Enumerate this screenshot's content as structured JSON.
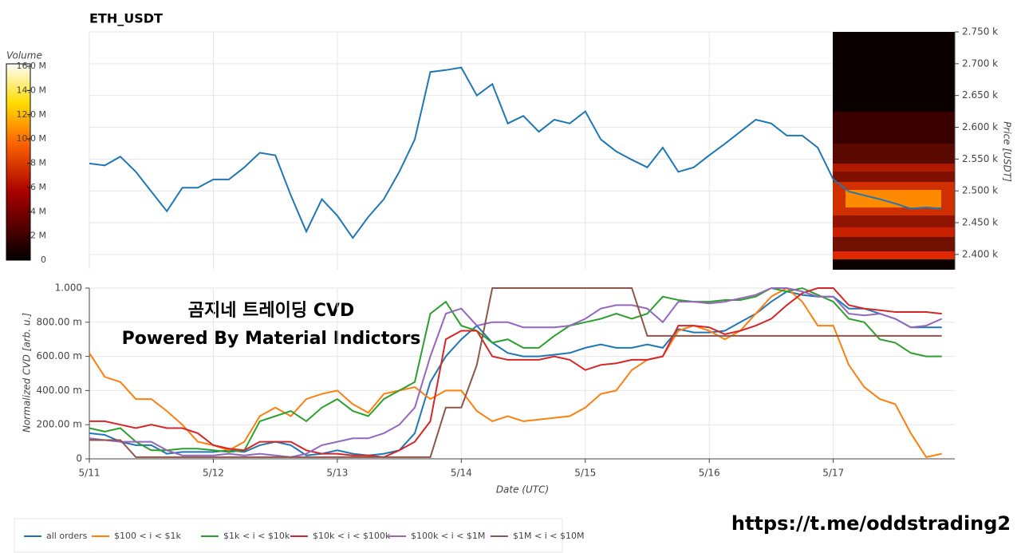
{
  "chart_data": [
    {
      "type": "line",
      "title": "ETH_USDT",
      "y_label": "Price [USDT]",
      "x": [
        11,
        11.125,
        11.25,
        11.375,
        11.5,
        11.625,
        11.75,
        11.875,
        12,
        12.125,
        12.25,
        12.375,
        12.5,
        12.625,
        12.75,
        12.875,
        13,
        13.125,
        13.25,
        13.375,
        13.5,
        13.625,
        13.75,
        13.875,
        14,
        14.125,
        14.25,
        14.375,
        14.5,
        14.625,
        14.75,
        14.875,
        15,
        15.125,
        15.25,
        15.375,
        15.5,
        15.625,
        15.75,
        15.875,
        16,
        16.125,
        16.25,
        16.375,
        16.5,
        16.625,
        16.75,
        16.875,
        17,
        17.125,
        17.25,
        17.375,
        17.5,
        17.625,
        17.75,
        17.875
      ],
      "series": [
        {
          "color": "#1f77b4",
          "values": [
            2543,
            2540,
            2554,
            2530,
            2499,
            2468,
            2505,
            2505,
            2518,
            2518,
            2537,
            2560,
            2556,
            2493,
            2436,
            2487,
            2461,
            2426,
            2459,
            2487,
            2530,
            2581,
            2687,
            2690,
            2694,
            2650,
            2668,
            2606,
            2618,
            2593,
            2612,
            2606,
            2625,
            2581,
            2562,
            2549,
            2537,
            2568,
            2530,
            2537,
            2556,
            2574,
            2593,
            2612,
            2606,
            2587,
            2587,
            2568,
            2518,
            2499,
            2493,
            2487,
            2480,
            2472,
            2474,
            2472
          ]
        }
      ],
      "xlim": [
        11,
        17.98
      ],
      "ylim": [
        2376,
        2750
      ],
      "yticks": [
        {
          "value": 2400,
          "label": "2.400 k"
        },
        {
          "value": 2450,
          "label": "2.450 k"
        },
        {
          "value": 2500,
          "label": "2.500 k"
        },
        {
          "value": 2550,
          "label": "2.550 k"
        },
        {
          "value": 2600,
          "label": "2.600 k"
        },
        {
          "value": 2650,
          "label": "2.650 k"
        },
        {
          "value": 2700,
          "label": "2.700 k"
        },
        {
          "value": 2750,
          "label": "2.750 k"
        }
      ],
      "colorbar": {
        "label": "Volume",
        "lim": [
          0,
          16000000
        ],
        "ticks": [
          0,
          {
            "value": 2000000,
            "label": "2 M"
          },
          {
            "value": 4000000,
            "label": "4 M"
          },
          {
            "value": 6000000,
            "label": "6 M"
          },
          {
            "value": 8000000,
            "label": "8 M"
          },
          {
            "value": 10000000,
            "label": "10.0 M"
          },
          {
            "value": 12000000,
            "label": "12.0 M"
          },
          {
            "value": 14000000,
            "label": "14.0 M"
          },
          {
            "value": 16000000,
            "label": "16.0 M"
          }
        ]
      },
      "grid": true
    },
    {
      "type": "line",
      "x_label": "Date (UTC)",
      "y_label": "Normalized CVD [arb. u.]",
      "annotations": [
        "곰지네 트레이딩 CVD",
        "Powered By Material Indictors"
      ],
      "x": [
        11,
        11.125,
        11.25,
        11.375,
        11.5,
        11.625,
        11.75,
        11.875,
        12,
        12.125,
        12.25,
        12.375,
        12.5,
        12.625,
        12.75,
        12.875,
        13,
        13.125,
        13.25,
        13.375,
        13.5,
        13.625,
        13.75,
        13.875,
        14,
        14.125,
        14.25,
        14.375,
        14.5,
        14.625,
        14.75,
        14.875,
        15,
        15.125,
        15.25,
        15.375,
        15.5,
        15.625,
        15.75,
        15.875,
        16,
        16.125,
        16.25,
        16.375,
        16.5,
        16.625,
        16.75,
        16.875,
        17,
        17.125,
        17.25,
        17.375,
        17.5,
        17.625,
        17.75,
        17.875
      ],
      "series": [
        {
          "name": "all orders",
          "color": "#1f77b4",
          "values": [
            0.15,
            0.14,
            0.1,
            0.08,
            0.08,
            0.03,
            0.04,
            0.04,
            0.04,
            0.05,
            0.04,
            0.08,
            0.1,
            0.08,
            0.02,
            0.03,
            0.05,
            0.03,
            0.02,
            0.03,
            0.05,
            0.15,
            0.45,
            0.6,
            0.7,
            0.78,
            0.68,
            0.62,
            0.6,
            0.6,
            0.61,
            0.62,
            0.65,
            0.67,
            0.65,
            0.65,
            0.67,
            0.65,
            0.76,
            0.74,
            0.74,
            0.75,
            0.8,
            0.85,
            0.92,
            0.98,
            0.96,
            0.95,
            0.95,
            0.88,
            0.88,
            0.85,
            0.82,
            0.77,
            0.77,
            0.77
          ]
        },
        {
          "name": "$100 < i < $1k",
          "color": "#ff7f0e",
          "values": [
            0.62,
            0.48,
            0.45,
            0.35,
            0.35,
            0.28,
            0.2,
            0.1,
            0.08,
            0.05,
            0.1,
            0.25,
            0.3,
            0.25,
            0.35,
            0.38,
            0.4,
            0.32,
            0.27,
            0.38,
            0.4,
            0.42,
            0.35,
            0.4,
            0.4,
            0.28,
            0.22,
            0.25,
            0.22,
            0.23,
            0.24,
            0.25,
            0.3,
            0.38,
            0.4,
            0.52,
            0.58,
            0.6,
            0.75,
            0.78,
            0.75,
            0.7,
            0.75,
            0.85,
            0.95,
            1.0,
            0.92,
            0.78,
            0.78,
            0.55,
            0.42,
            0.35,
            0.32,
            0.15,
            0.01,
            0.03
          ]
        },
        {
          "name": "$1k < i < $10k",
          "color": "#2ca02c",
          "values": [
            0.18,
            0.16,
            0.18,
            0.1,
            0.05,
            0.05,
            0.06,
            0.06,
            0.05,
            0.04,
            0.05,
            0.22,
            0.25,
            0.28,
            0.22,
            0.3,
            0.35,
            0.28,
            0.25,
            0.35,
            0.4,
            0.45,
            0.85,
            0.92,
            0.78,
            0.75,
            0.68,
            0.7,
            0.65,
            0.65,
            0.72,
            0.78,
            0.8,
            0.82,
            0.85,
            0.82,
            0.85,
            0.95,
            0.93,
            0.92,
            0.92,
            0.93,
            0.93,
            0.95,
            1.0,
            0.98,
            1.0,
            0.96,
            0.92,
            0.82,
            0.8,
            0.7,
            0.68,
            0.62,
            0.6,
            0.6
          ]
        },
        {
          "name": "$10k < i < $100k",
          "color": "#d62728",
          "values": [
            0.22,
            0.22,
            0.2,
            0.18,
            0.2,
            0.18,
            0.18,
            0.15,
            0.08,
            0.06,
            0.05,
            0.1,
            0.1,
            0.1,
            0.05,
            0.03,
            0.03,
            0.02,
            0.02,
            0.01,
            0.05,
            0.1,
            0.22,
            0.7,
            0.75,
            0.75,
            0.6,
            0.58,
            0.58,
            0.58,
            0.6,
            0.58,
            0.52,
            0.55,
            0.56,
            0.58,
            0.58,
            0.6,
            0.78,
            0.78,
            0.77,
            0.73,
            0.75,
            0.78,
            0.82,
            0.9,
            0.97,
            1.0,
            1.0,
            0.9,
            0.88,
            0.87,
            0.86,
            0.86,
            0.86,
            0.85
          ]
        },
        {
          "name": "$100k < i < $1M",
          "color": "#9467bd",
          "values": [
            0.12,
            0.11,
            0.1,
            0.1,
            0.1,
            0.05,
            0.02,
            0.02,
            0.02,
            0.03,
            0.02,
            0.03,
            0.02,
            0.01,
            0.03,
            0.08,
            0.1,
            0.12,
            0.12,
            0.15,
            0.2,
            0.3,
            0.6,
            0.85,
            0.88,
            0.78,
            0.8,
            0.8,
            0.77,
            0.77,
            0.77,
            0.78,
            0.82,
            0.88,
            0.9,
            0.9,
            0.88,
            0.8,
            0.92,
            0.92,
            0.91,
            0.92,
            0.94,
            0.96,
            1.0,
            1.0,
            0.98,
            0.95,
            0.95,
            0.85,
            0.84,
            0.85,
            0.82,
            0.77,
            0.78,
            0.82
          ]
        },
        {
          "name": "$1M < i < $10M",
          "color": "#8c564b",
          "values": [
            0.11,
            0.11,
            0.11,
            0.01,
            0.01,
            0.01,
            0.01,
            0.01,
            0.01,
            0.01,
            0.01,
            0.01,
            0.01,
            0.01,
            0.01,
            0.01,
            0.01,
            0.01,
            0.01,
            0.01,
            0.01,
            0.01,
            0.01,
            0.3,
            0.3,
            0.55,
            1.0,
            1.0,
            1.0,
            1.0,
            1.0,
            1.0,
            1.0,
            1.0,
            1.0,
            1.0,
            0.72,
            0.72,
            0.72,
            0.72,
            0.72,
            0.72,
            0.72,
            0.72,
            0.72,
            0.72,
            0.72,
            0.72,
            0.72,
            0.72,
            0.72,
            0.72,
            0.72,
            0.72,
            0.72,
            0.72
          ]
        }
      ],
      "xlim": [
        11,
        17.98
      ],
      "ylim": [
        0,
        1
      ],
      "xticks": [
        {
          "value": 11,
          "label": "5/11"
        },
        {
          "value": 12,
          "label": "5/12"
        },
        {
          "value": 13,
          "label": "5/13"
        },
        {
          "value": 14,
          "label": "5/14"
        },
        {
          "value": 15,
          "label": "5/15"
        },
        {
          "value": 16,
          "label": "5/16"
        },
        {
          "value": 17,
          "label": "5/17"
        }
      ],
      "yticks": [
        0,
        {
          "value": 0.2,
          "label": "200.00 m"
        },
        {
          "value": 0.4,
          "label": "400.00 m"
        },
        {
          "value": 0.6,
          "label": "600.00 m"
        },
        {
          "value": 0.8,
          "label": "800.00 m"
        },
        {
          "value": 1,
          "label": "1.000"
        }
      ],
      "grid": true,
      "legend": "bottom"
    }
  ],
  "footer": "https://t.me/oddstrading2"
}
